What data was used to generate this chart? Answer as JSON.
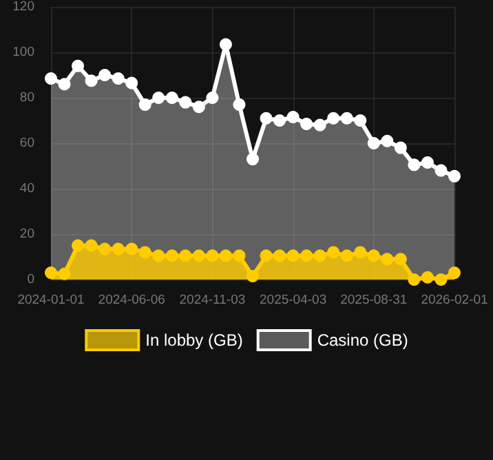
{
  "chart_data": {
    "type": "area",
    "categories": [
      "2024-01-01",
      null,
      null,
      null,
      null,
      null,
      "2024-06-06",
      null,
      null,
      null,
      null,
      null,
      "2024-11-03",
      null,
      null,
      null,
      null,
      null,
      "2025-04-03",
      null,
      null,
      null,
      null,
      null,
      "2025-08-31",
      null,
      null,
      null,
      null,
      null,
      "2026-02-01"
    ],
    "series": [
      {
        "name": "In lobby (GB)",
        "color": "#ffcc00",
        "values": [
          3,
          2.5,
          15,
          15,
          13.5,
          13.5,
          13.5,
          12,
          10.5,
          10.5,
          10.5,
          10.5,
          10.5,
          10.5,
          10.5,
          1.5,
          10.5,
          10.5,
          10.5,
          10.5,
          10.5,
          12,
          10.5,
          12,
          10.5,
          9,
          9,
          0,
          1,
          0,
          3
        ]
      },
      {
        "name": "Casino (GB)",
        "color": "#ffffff",
        "values": [
          88.5,
          86,
          94,
          87.5,
          90,
          88.5,
          86.5,
          77,
          80,
          80,
          78,
          76,
          80,
          103.5,
          77,
          53,
          71,
          70,
          71.5,
          68.5,
          68,
          71,
          71,
          70,
          60,
          61,
          58,
          50.5,
          51.5,
          48,
          45.5
        ]
      }
    ],
    "ylim": [
      0,
      120
    ],
    "yticks": [
      0,
      20,
      40,
      60,
      80,
      100,
      120
    ],
    "grid": true,
    "legend": "bottom",
    "marker": "circle"
  }
}
